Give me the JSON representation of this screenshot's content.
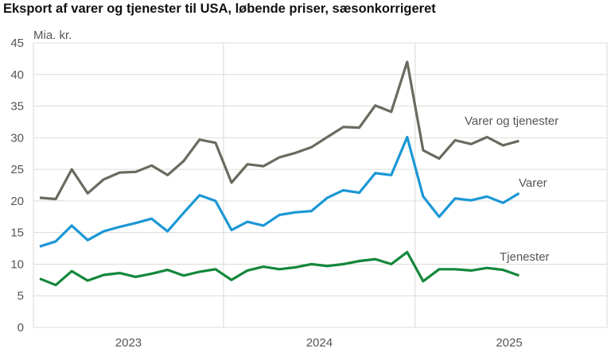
{
  "title": "Eksport af varer og tjenester til USA, løbende priser, sæsonkorrigeret",
  "chart_data": {
    "type": "line",
    "title": "Eksport af varer og tjenester til USA, løbende priser, sæsonkorrigeret",
    "ylabel": "Mia. kr.",
    "ylim": [
      0,
      45
    ],
    "yticks": [
      0,
      5,
      10,
      15,
      20,
      25,
      30,
      35,
      40,
      45
    ],
    "xtick_labels": [
      "2023",
      "2024",
      "2025"
    ],
    "x": [
      "2023-01",
      "2023-02",
      "2023-03",
      "2023-04",
      "2023-05",
      "2023-06",
      "2023-07",
      "2023-08",
      "2023-09",
      "2023-10",
      "2023-11",
      "2023-12",
      "2024-01",
      "2024-02",
      "2024-03",
      "2024-04",
      "2024-05",
      "2024-06",
      "2024-07",
      "2024-08",
      "2024-09",
      "2024-10",
      "2024-11",
      "2024-12",
      "2025-01",
      "2025-02",
      "2025-03",
      "2025-04",
      "2025-05",
      "2025-06",
      "2025-07"
    ],
    "grid": "horizontal lines, vertical lines at year boundaries",
    "legend": "inline labels at right end of lines",
    "series": [
      {
        "name": "Varer og tjenester",
        "color": "#6b6a5f",
        "values": [
          20.5,
          20.3,
          25.0,
          21.2,
          23.4,
          24.5,
          24.6,
          25.6,
          24.1,
          26.3,
          29.7,
          29.2,
          22.9,
          25.8,
          25.5,
          26.9,
          27.6,
          28.5,
          30.1,
          31.7,
          31.6,
          35.1,
          34.1,
          42.0,
          28.0,
          26.7,
          29.6,
          29.0,
          30.1,
          28.8,
          29.5
        ]
      },
      {
        "name": "Varer",
        "color": "#1b97d5",
        "values": [
          12.8,
          13.6,
          16.1,
          13.8,
          15.2,
          15.9,
          16.5,
          17.2,
          15.2,
          18.1,
          20.9,
          20.0,
          15.4,
          16.7,
          16.1,
          17.8,
          18.2,
          18.4,
          20.5,
          21.7,
          21.3,
          24.4,
          24.1,
          30.1,
          20.7,
          17.5,
          20.4,
          20.1,
          20.7,
          19.7,
          21.2
        ]
      },
      {
        "name": "Tjenester",
        "color": "#13873a",
        "values": [
          7.7,
          6.7,
          8.9,
          7.4,
          8.3,
          8.6,
          8.0,
          8.5,
          9.1,
          8.2,
          8.8,
          9.2,
          7.5,
          9.0,
          9.6,
          9.2,
          9.5,
          10.0,
          9.7,
          10.0,
          10.5,
          10.8,
          10.0,
          11.9,
          7.3,
          9.2,
          9.2,
          9.0,
          9.4,
          9.1,
          8.2
        ]
      }
    ]
  }
}
